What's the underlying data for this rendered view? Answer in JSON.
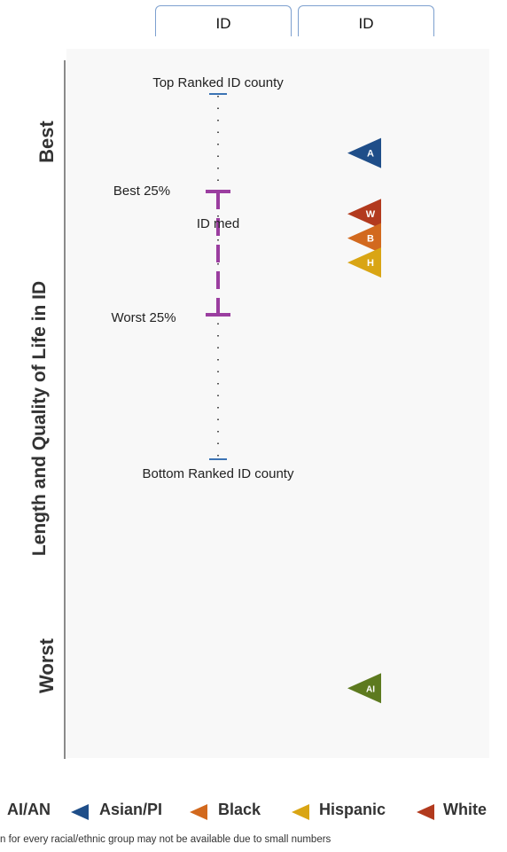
{
  "header": {
    "tab_left": "ID",
    "tab_right": "ID"
  },
  "y_axis": {
    "label": "Length and Quality of Life in ID",
    "top_label": "Best",
    "bottom_label": "Worst"
  },
  "chart_data": {
    "type": "scatter",
    "state_distribution": {
      "top_label": "Top Ranked ID county",
      "best25_label": "Best 25%",
      "median_label": "ID med",
      "worst25_label": "Worst 25%",
      "bottom_label": "Bottom Ranked ID county"
    },
    "groups": [
      {
        "name": "Asian/PI",
        "abbr": "A",
        "color": "#1f4e89",
        "rank_position": 0.1
      },
      {
        "name": "White",
        "abbr": "W",
        "color": "#b23a1e",
        "rank_position": 0.2
      },
      {
        "name": "Black",
        "abbr": "B",
        "color": "#d2691e",
        "rank_position": 0.24
      },
      {
        "name": "Hispanic",
        "abbr": "H",
        "color": "#d9a514",
        "rank_position": 0.28
      },
      {
        "name": "AI/AN",
        "abbr": "AI",
        "color": "#5d7a1f",
        "rank_position": 0.98
      }
    ]
  },
  "legend": [
    {
      "label": "AI/AN",
      "color": "#5d7a1f"
    },
    {
      "label": "Asian/PI",
      "color": "#1f4e89"
    },
    {
      "label": "Black",
      "color": "#d2691e"
    },
    {
      "label": "Hispanic",
      "color": "#d9a514"
    },
    {
      "label": "White",
      "color": "#b23a1e"
    }
  ],
  "footnote": "n for every racial/ethnic group may not be available due to small numbers"
}
